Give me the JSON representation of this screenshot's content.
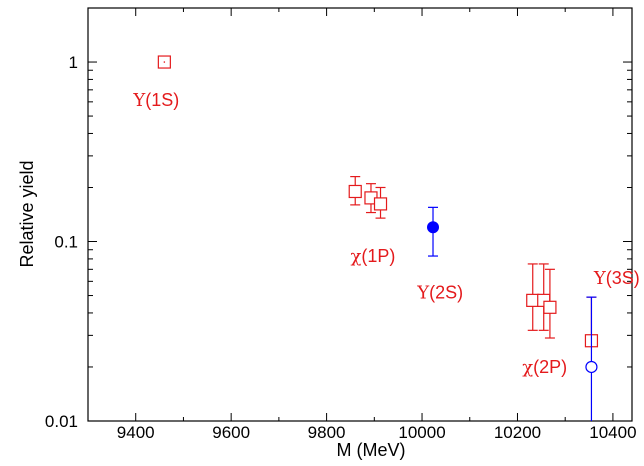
{
  "chart_data": {
    "type": "scatter",
    "title": "",
    "xlabel": "M (MeV)",
    "ylabel": "Relative yield",
    "xlim": [
      9300,
      10440
    ],
    "ylim": [
      0.01,
      2
    ],
    "y_scale": "log",
    "x_ticks": [
      9400,
      9600,
      9800,
      10000,
      10200,
      10400
    ],
    "x_tick_labels": [
      "9400",
      "9600",
      "9800",
      "10000",
      "10200",
      "10400"
    ],
    "y_ticks": [
      0.01,
      0.1,
      1
    ],
    "y_tick_labels": [
      "0.01",
      "0.1",
      "1"
    ],
    "grid": false,
    "legend": "none",
    "colors": {
      "red": "#e41a1c",
      "blue": "#0000ff"
    },
    "series": [
      {
        "color": "red",
        "marker": "open-square",
        "points": [
          {
            "x": 9460,
            "y": 1.0,
            "err_low": null,
            "err_high": null
          },
          {
            "x": 9860,
            "y": 0.19,
            "err_low": 0.16,
            "err_high": 0.23
          },
          {
            "x": 9893,
            "y": 0.175,
            "err_low": 0.145,
            "err_high": 0.21
          },
          {
            "x": 9913,
            "y": 0.162,
            "err_low": 0.135,
            "err_high": 0.2
          },
          {
            "x": 10232,
            "y": 0.047,
            "err_low": 0.032,
            "err_high": 0.075
          },
          {
            "x": 10255,
            "y": 0.047,
            "err_low": 0.032,
            "err_high": 0.075
          },
          {
            "x": 10268,
            "y": 0.043,
            "err_low": 0.029,
            "err_high": 0.07
          },
          {
            "x": 10355,
            "y": 0.028,
            "err_low": null,
            "err_high": 0.049
          }
        ]
      },
      {
        "color": "blue",
        "marker": "filled-circle",
        "points": [
          {
            "x": 10023,
            "y": 0.12,
            "err_low": 0.083,
            "err_high": 0.155
          }
        ]
      },
      {
        "color": "blue",
        "marker": "open-circle",
        "points": [
          {
            "x": 10355,
            "y": 0.02,
            "err_low": 0.01,
            "err_high": 0.049
          }
        ]
      }
    ],
    "annotations": [
      {
        "sym": "Υ",
        "text": "(1S)",
        "x": 9395,
        "y": 0.57
      },
      {
        "sym": "χ",
        "text": "(1P)",
        "x": 9850,
        "y": 0.077
      },
      {
        "sym": "Υ",
        "text": "(2S)",
        "x": 9990,
        "y": 0.048
      },
      {
        "sym": "Υ",
        "text": "(3S)",
        "x": 10360,
        "y": 0.058
      },
      {
        "sym": "χ",
        "text": "(2P)",
        "x": 10210,
        "y": 0.0185
      }
    ]
  }
}
